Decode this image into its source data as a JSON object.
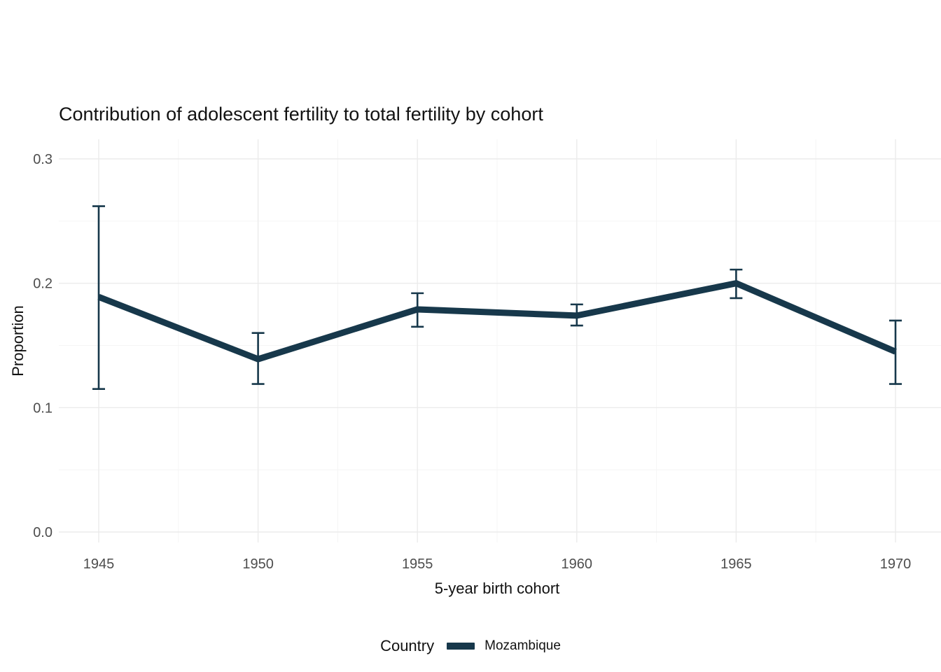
{
  "chart_data": {
    "type": "line",
    "title": "Contribution of adolescent fertility to total fertility by cohort",
    "xlabel": "5-year birth cohort",
    "ylabel": "Proportion",
    "x": [
      1945,
      1950,
      1955,
      1960,
      1965,
      1970
    ],
    "series": [
      {
        "name": "Mozambique",
        "values": [
          0.189,
          0.139,
          0.179,
          0.174,
          0.2,
          0.145
        ],
        "ci_low": [
          0.115,
          0.119,
          0.165,
          0.166,
          0.188,
          0.119
        ],
        "ci_high": [
          0.262,
          0.16,
          0.192,
          0.183,
          0.211,
          0.17
        ],
        "color": "#17384b"
      }
    ],
    "legend_title": "Country",
    "legend_position": "bottom",
    "xlim": [
      1943.7,
      1971.5
    ],
    "ylim": [
      0.0,
      0.3
    ],
    "yticks": [
      "0.0",
      "0.1",
      "0.2",
      "0.3"
    ],
    "xticks": [
      "1945",
      "1950",
      "1955",
      "1960",
      "1965",
      "1970"
    ],
    "minor_yticks": [
      0.05,
      0.15,
      0.25
    ],
    "minor_xticks": [
      1947.5,
      1952.5,
      1957.5,
      1962.5,
      1967.5
    ],
    "grid": "on",
    "colors": {
      "major_grid": "#ebebeb",
      "minor_grid": "#f5f5f5",
      "tick_text": "#4d4d4d",
      "title_text": "#121212"
    }
  }
}
